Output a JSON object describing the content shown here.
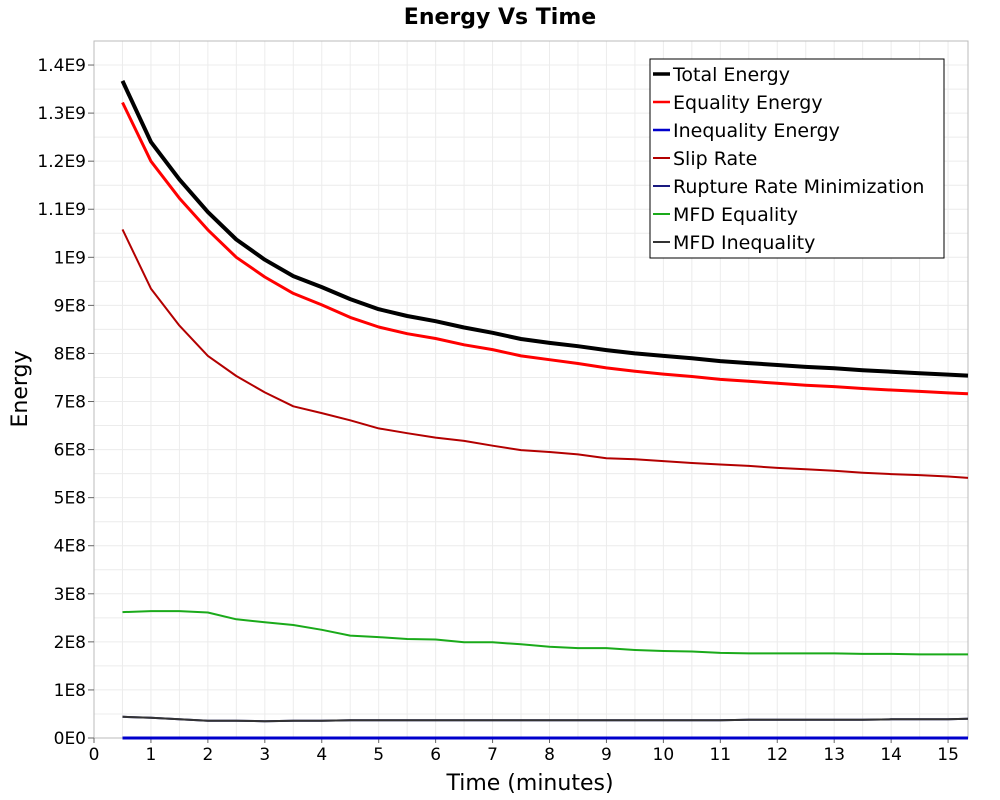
{
  "chart_data": {
    "type": "line",
    "title": "Energy Vs Time",
    "xlabel": "Time (minutes)",
    "ylabel": "Energy",
    "xlim": [
      0,
      15.35
    ],
    "ylim": [
      0,
      1450000000
    ],
    "x_ticks": [
      0,
      1,
      2,
      3,
      4,
      5,
      6,
      7,
      8,
      9,
      10,
      11,
      12,
      13,
      14,
      15
    ],
    "x_tick_labels": [
      "0",
      "1",
      "2",
      "3",
      "4",
      "5",
      "6",
      "7",
      "8",
      "9",
      "10",
      "11",
      "12",
      "13",
      "14",
      "15"
    ],
    "y_ticks": [
      0,
      100000000,
      200000000,
      300000000,
      400000000,
      500000000,
      600000000,
      700000000,
      800000000,
      900000000,
      1000000000,
      1100000000,
      1200000000,
      1300000000,
      1400000000
    ],
    "y_tick_labels": [
      "0E0",
      "1E8",
      "2E8",
      "3E8",
      "4E8",
      "5E8",
      "6E8",
      "7E8",
      "8E8",
      "9E8",
      "1E9",
      "1.1E9",
      "1.2E9",
      "1.3E9",
      "1.4E9"
    ],
    "grid": true,
    "legend_position": "top-right",
    "x": [
      0.5,
      1,
      1.5,
      2,
      2.5,
      3,
      3.5,
      4,
      4.5,
      5,
      5.5,
      6,
      6.5,
      7,
      7.5,
      8,
      8.5,
      9,
      9.5,
      10,
      10.5,
      11,
      11.5,
      12,
      12.5,
      13,
      13.5,
      14,
      14.5,
      15,
      15.35
    ],
    "series": [
      {
        "name": "Total Energy",
        "color": "#000000",
        "width": 4,
        "values": [
          1367000000,
          1240000000,
          1162000000,
          1094000000,
          1037000000,
          995000000,
          961000000,
          938000000,
          913000000,
          892000000,
          878000000,
          867000000,
          854000000,
          843000000,
          830000000,
          822000000,
          815000000,
          807000000,
          800000000,
          795000000,
          790000000,
          784000000,
          780000000,
          776000000,
          772000000,
          769000000,
          765000000,
          762000000,
          759000000,
          756000000,
          754000000
        ]
      },
      {
        "name": "Equality Energy",
        "color": "#ff0000",
        "width": 3,
        "values": [
          1322000000,
          1200000000,
          1123000000,
          1057000000,
          1000000000,
          959000000,
          925000000,
          901000000,
          875000000,
          855000000,
          841000000,
          831000000,
          818000000,
          808000000,
          795000000,
          787000000,
          779000000,
          770000000,
          763000000,
          757000000,
          752000000,
          746000000,
          742000000,
          738000000,
          734000000,
          731000000,
          727000000,
          724000000,
          721000000,
          718000000,
          716000000
        ]
      },
      {
        "name": "Inequality Energy",
        "color": "#0000cc",
        "width": 3,
        "values": [
          0,
          0,
          0,
          0,
          0,
          0,
          0,
          0,
          0,
          0,
          0,
          0,
          0,
          0,
          0,
          0,
          0,
          0,
          0,
          0,
          0,
          0,
          0,
          0,
          0,
          0,
          0,
          0,
          0,
          0,
          0
        ]
      },
      {
        "name": "Slip Rate",
        "color": "#b30000",
        "width": 2,
        "values": [
          1058000000,
          935000000,
          858000000,
          795000000,
          753000000,
          719000000,
          690000000,
          676000000,
          661000000,
          644000000,
          634000000,
          625000000,
          618000000,
          608000000,
          599000000,
          595000000,
          590000000,
          582000000,
          580000000,
          576000000,
          572000000,
          569000000,
          566000000,
          562000000,
          559000000,
          556000000,
          552000000,
          549000000,
          547000000,
          544000000,
          541000000
        ]
      },
      {
        "name": "Rupture Rate Minimization",
        "color": "#1a1a80",
        "width": 2,
        "values": [
          44000000,
          42000000,
          39000000,
          36000000,
          36000000,
          35000000,
          36000000,
          36000000,
          37000000,
          37000000,
          37000000,
          37000000,
          37000000,
          37000000,
          37000000,
          37000000,
          37000000,
          37000000,
          37000000,
          37000000,
          37000000,
          37000000,
          38000000,
          38000000,
          38000000,
          38000000,
          38000000,
          39000000,
          39000000,
          39000000,
          40000000
        ]
      },
      {
        "name": "MFD Equality",
        "color": "#1aaa1a",
        "width": 2,
        "values": [
          262000000,
          264000000,
          264000000,
          261000000,
          247000000,
          241000000,
          235000000,
          225000000,
          213000000,
          210000000,
          206000000,
          205000000,
          199000000,
          199000000,
          195000000,
          190000000,
          187000000,
          187000000,
          183000000,
          181000000,
          180000000,
          177000000,
          176000000,
          176000000,
          176000000,
          176000000,
          175000000,
          175000000,
          174000000,
          174000000,
          174000000
        ]
      },
      {
        "name": "MFD Inequality",
        "color": "#333333",
        "width": 2,
        "values": [
          44000000,
          42000000,
          39000000,
          36000000,
          36000000,
          35000000,
          36000000,
          36000000,
          37000000,
          37000000,
          37000000,
          37000000,
          37000000,
          37000000,
          37000000,
          37000000,
          37000000,
          37000000,
          37000000,
          37000000,
          37000000,
          37000000,
          38000000,
          38000000,
          38000000,
          38000000,
          38000000,
          39000000,
          39000000,
          39000000,
          40000000
        ]
      }
    ]
  }
}
